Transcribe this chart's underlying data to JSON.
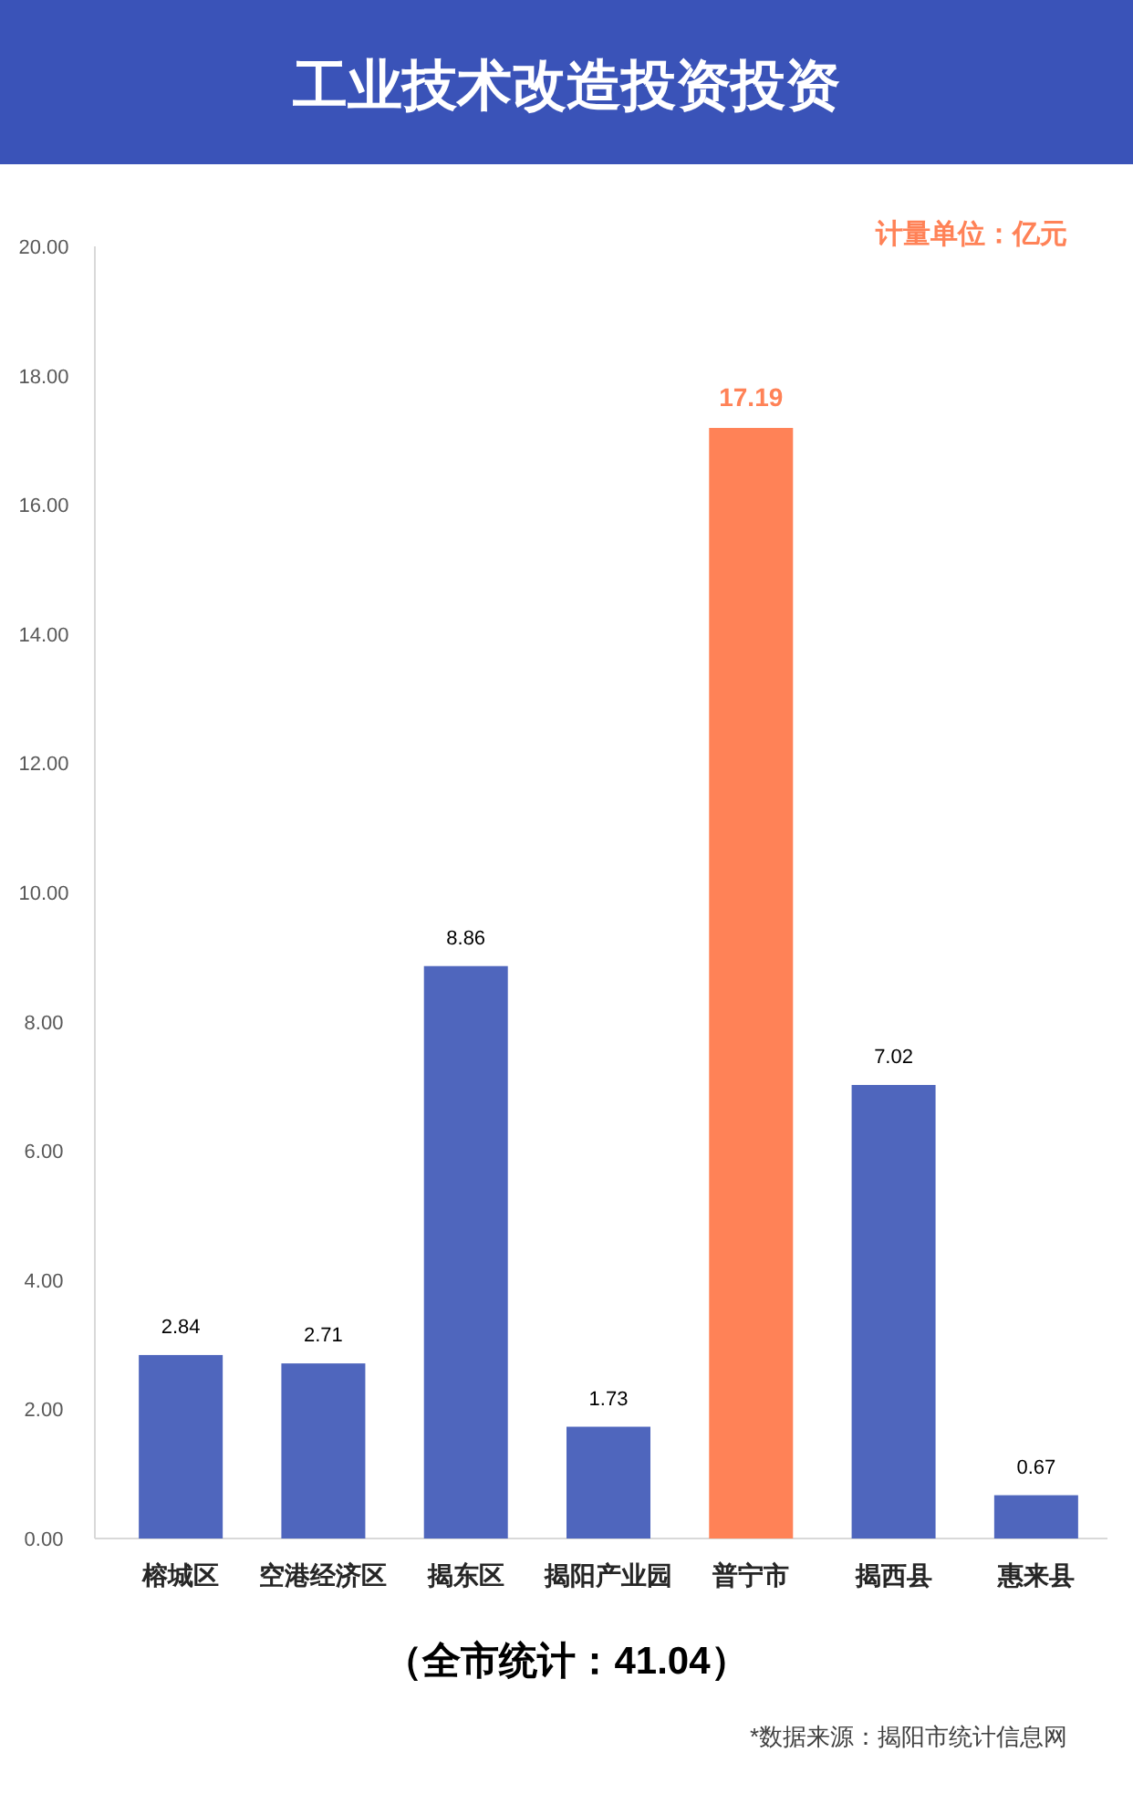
{
  "chart_data": {
    "type": "bar",
    "title": "工业技术改造投资投资",
    "categories": [
      "榕城区",
      "空港经济区",
      "揭东区",
      "揭阳产业园",
      "普宁市",
      "揭西县",
      "惠来县"
    ],
    "values": [
      2.84,
      2.71,
      8.86,
      1.73,
      17.19,
      7.02,
      0.67
    ],
    "colors": [
      "#4f66bd",
      "#4f66bd",
      "#4f66bd",
      "#4f66bd",
      "#ff8257",
      "#4f66bd",
      "#4f66bd"
    ],
    "data_labels": true,
    "ylim": [
      0,
      20
    ],
    "yticks": [
      {
        "value": 0,
        "label": "0.00"
      },
      {
        "value": 2,
        "label": "2.00"
      },
      {
        "value": 4,
        "label": "4.00"
      },
      {
        "value": 6,
        "label": "6.00"
      },
      {
        "value": 8,
        "label": "8.00"
      },
      {
        "value": 10,
        "label": "10.00"
      },
      {
        "value": 12,
        "label": "12.00"
      },
      {
        "value": 14,
        "label": "14.00"
      },
      {
        "value": 16,
        "label": "16.00"
      },
      {
        "value": 18,
        "label": "18.00"
      },
      {
        "value": 20,
        "label": "20.00"
      }
    ],
    "grid": false,
    "annotations": [
      "计量单位：亿元",
      "（全市统计：41.04）",
      "*数据来源：揭阳市统计信息网"
    ]
  }
}
